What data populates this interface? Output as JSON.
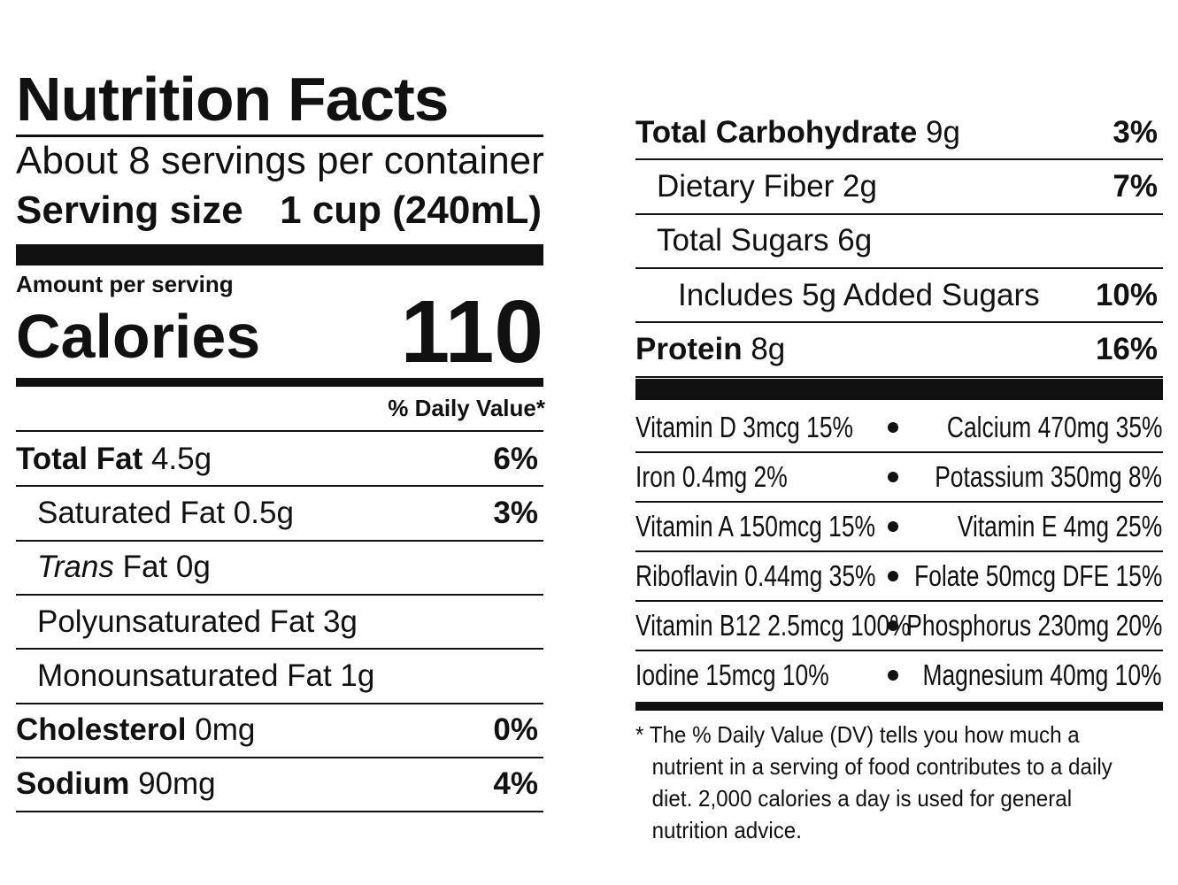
{
  "header": {
    "title": "Nutrition Facts",
    "servings": "About 8 servings per container",
    "serving_size_label": "Serving size",
    "serving_size_value": "1 cup (240mL)"
  },
  "calories": {
    "amount_label": "Amount per serving",
    "label": "Calories",
    "value": 110
  },
  "dv_header": "% Daily Value*",
  "left_rows": [
    {
      "name": "Total Fat",
      "amount": "4.5g",
      "dv": "6%",
      "sub": [
        {
          "name": "Saturated Fat 0.5g",
          "dv": "3%"
        },
        {
          "name_prefix": "Trans",
          "name": "Fat 0g"
        },
        {
          "name": "Polyunsaturated Fat 3g"
        },
        {
          "name": "Monounsaturated Fat 1g"
        }
      ]
    },
    {
      "name": "Cholesterol",
      "amount": "0mg",
      "dv": "0%"
    },
    {
      "name": "Sodium",
      "amount": "90mg",
      "dv": "4%"
    }
  ],
  "right_rows": [
    {
      "name": "Total Carbohydrate",
      "amount": "9g",
      "dv": "3%",
      "sub": [
        {
          "name": "Dietary Fiber 2g",
          "dv": "7%"
        },
        {
          "name": "Total Sugars 6g",
          "sub": [
            {
              "name": "Includes 5g Added Sugars",
              "dv": "10%"
            }
          ]
        }
      ]
    },
    {
      "name": "Protein",
      "amount": "8g",
      "dv": "16%"
    }
  ],
  "vitamins": [
    [
      "Vitamin D 3mcg 15%",
      "Calcium 470mg 35%"
    ],
    [
      "Iron 0.4mg 2%",
      "Potassium 350mg 8%"
    ],
    [
      "Vitamin A 150mcg 15%",
      "Vitamin E 4mg 25%"
    ],
    [
      "Riboflavin 0.44mg 35%",
      "Folate 50mcg DFE 15%"
    ],
    [
      "Vitamin B12 2.5mcg 100%",
      "Phosphorus 230mg 20%"
    ],
    [
      "Iodine 15mcg 10%",
      "Magnesium 40mg 10%"
    ]
  ],
  "footnote": "* The % Daily Value (DV) tells you how much a nutrient in a serving of food contributes to a daily diet. 2,000 calories a day is used for general nutrition advice."
}
